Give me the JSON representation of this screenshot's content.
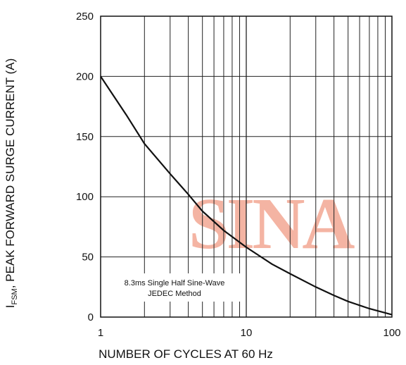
{
  "chart_data": {
    "type": "line",
    "x_scale": "log",
    "xlim": [
      1,
      100
    ],
    "ylim": [
      0,
      250
    ],
    "xlabel": "NUMBER OF CYCLES AT 60 Hz",
    "ylabel_main": "I",
    "ylabel_sub": "FSM",
    "ylabel_rest": ", PEAK FORWARD SURGE CURRENT (A)",
    "x_tick_labels": [
      {
        "value": 1,
        "label": "1"
      },
      {
        "value": 10,
        "label": "10"
      },
      {
        "value": 100,
        "label": "100"
      }
    ],
    "y_ticks": [
      0,
      50,
      100,
      150,
      200,
      250
    ],
    "grid": true,
    "annotation_lines": [
      "8.3ms Single Half Sine-Wave",
      "JEDEC Method"
    ],
    "series": [
      {
        "x": [
          1,
          1.5,
          2,
          3,
          4,
          5,
          7,
          10,
          15,
          20,
          30,
          40,
          50,
          70,
          100
        ],
        "y": [
          200,
          168,
          144,
          119,
          102,
          88,
          72,
          58,
          44,
          36,
          25,
          18,
          13,
          7,
          2
        ]
      }
    ],
    "watermark": "SINA",
    "line_color": "#111111",
    "watermark_color": "#f2a08a"
  }
}
